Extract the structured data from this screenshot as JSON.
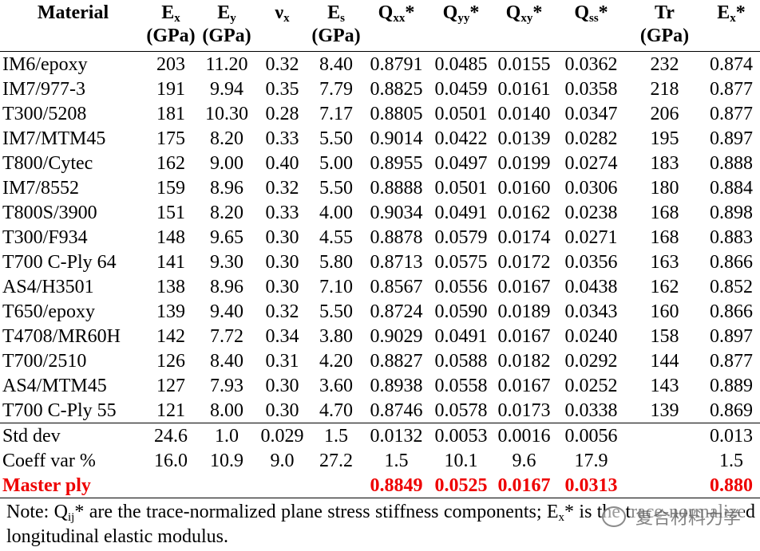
{
  "table": {
    "header": [
      {
        "text": "Material"
      },
      {
        "text": "E",
        "sub": "x",
        "unit": "(GPa)"
      },
      {
        "text": "E",
        "sub": "y",
        "unit": "(GPa)"
      },
      {
        "text": "ν",
        "sub": "x"
      },
      {
        "text": "E",
        "sub": "s",
        "unit": "(GPa)"
      },
      {
        "text": "Q",
        "sub": "xx",
        "after": "*"
      },
      {
        "text": "Q",
        "sub": "yy",
        "after": "*"
      },
      {
        "text": "Q",
        "sub": "xy",
        "after": "*"
      },
      {
        "text": "Q",
        "sub": "ss",
        "after": "*"
      },
      {
        "text": "Tr",
        "unit": "(GPa)"
      },
      {
        "text": "E",
        "sub": "x",
        "after": "*"
      }
    ],
    "rows": [
      [
        "IM6/epoxy",
        "203",
        "11.20",
        "0.32",
        "8.40",
        "0.8791",
        "0.0485",
        "0.0155",
        "0.0362",
        "232",
        "0.874"
      ],
      [
        "IM7/977-3",
        "191",
        "9.94",
        "0.35",
        "7.79",
        "0.8825",
        "0.0459",
        "0.0161",
        "0.0358",
        "218",
        "0.877"
      ],
      [
        "T300/5208",
        "181",
        "10.30",
        "0.28",
        "7.17",
        "0.8805",
        "0.0501",
        "0.0140",
        "0.0347",
        "206",
        "0.877"
      ],
      [
        "IM7/MTM45",
        "175",
        "8.20",
        "0.33",
        "5.50",
        "0.9014",
        "0.0422",
        "0.0139",
        "0.0282",
        "195",
        "0.897"
      ],
      [
        "T800/Cytec",
        "162",
        "9.00",
        "0.40",
        "5.00",
        "0.8955",
        "0.0497",
        "0.0199",
        "0.0274",
        "183",
        "0.888"
      ],
      [
        "IM7/8552",
        "159",
        "8.96",
        "0.32",
        "5.50",
        "0.8888",
        "0.0501",
        "0.0160",
        "0.0306",
        "180",
        "0.884"
      ],
      [
        "T800S/3900",
        "151",
        "8.20",
        "0.33",
        "4.00",
        "0.9034",
        "0.0491",
        "0.0162",
        "0.0238",
        "168",
        "0.898"
      ],
      [
        "T300/F934",
        "148",
        "9.65",
        "0.30",
        "4.55",
        "0.8878",
        "0.0579",
        "0.0174",
        "0.0271",
        "168",
        "0.883"
      ],
      [
        "T700 C-Ply 64",
        "141",
        "9.30",
        "0.30",
        "5.80",
        "0.8713",
        "0.0575",
        "0.0172",
        "0.0356",
        "163",
        "0.866"
      ],
      [
        "AS4/H3501",
        "138",
        "8.96",
        "0.30",
        "7.10",
        "0.8567",
        "0.0556",
        "0.0167",
        "0.0438",
        "162",
        "0.852"
      ],
      [
        "T650/epoxy",
        "139",
        "9.40",
        "0.32",
        "5.50",
        "0.8724",
        "0.0590",
        "0.0189",
        "0.0343",
        "160",
        "0.866"
      ],
      [
        "T4708/MR60H",
        "142",
        "7.72",
        "0.34",
        "3.80",
        "0.9029",
        "0.0491",
        "0.0167",
        "0.0240",
        "158",
        "0.897"
      ],
      [
        "T700/2510",
        "126",
        "8.40",
        "0.31",
        "4.20",
        "0.8827",
        "0.0588",
        "0.0182",
        "0.0292",
        "144",
        "0.877"
      ],
      [
        "AS4/MTM45",
        "127",
        "7.93",
        "0.30",
        "3.60",
        "0.8938",
        "0.0558",
        "0.0167",
        "0.0252",
        "143",
        "0.889"
      ],
      [
        "T700 C-Ply 55",
        "121",
        "8.00",
        "0.30",
        "4.70",
        "0.8746",
        "0.0578",
        "0.0173",
        "0.0338",
        "139",
        "0.869"
      ]
    ],
    "stats": [
      [
        "Std dev",
        "24.6",
        "1.0",
        "0.029",
        "1.5",
        "0.0132",
        "0.0053",
        "0.0016",
        "0.0056",
        null,
        "0.013"
      ],
      [
        "Coeff var %",
        "16.0",
        "10.9",
        "9.0",
        "27.2",
        "1.5",
        "10.1",
        "9.6",
        "17.9",
        null,
        "1.5"
      ]
    ],
    "master": [
      "Master ply",
      null,
      null,
      null,
      null,
      "0.8849",
      "0.0525",
      "0.0167",
      "0.0313",
      null,
      "0.880"
    ]
  },
  "note": {
    "parts": [
      "Note: Q",
      "ij",
      "* are the trace-normalized plane stress stiffness components; E",
      "x",
      "* is the trace-normalized longitudinal elastic modulus."
    ]
  },
  "watermark": "复合材料力学"
}
